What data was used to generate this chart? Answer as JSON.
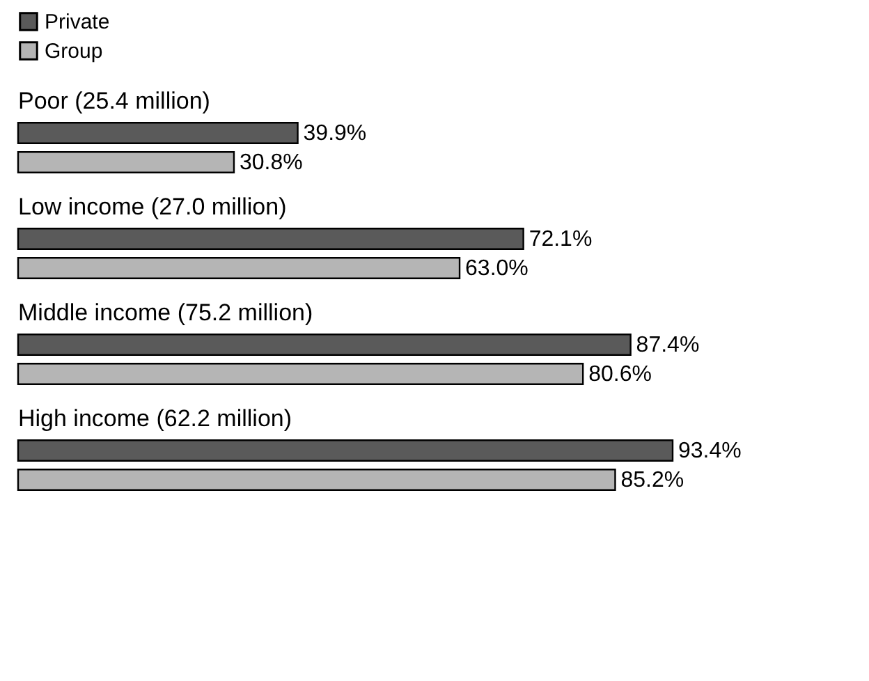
{
  "chart_data": {
    "type": "bar",
    "orientation": "horizontal",
    "categories": [
      "Poor (25.4 million)",
      "Low income (27.0 million)",
      "Middle income (75.2 million)",
      "High income (62.2 million)"
    ],
    "series": [
      {
        "name": "Private",
        "color": "#5a5a5a",
        "values": [
          39.9,
          72.1,
          87.4,
          93.4
        ],
        "value_labels": [
          "39.9%",
          "72.1%",
          "87.4%",
          "93.4%"
        ]
      },
      {
        "name": "Group",
        "color": "#b5b5b5",
        "values": [
          30.8,
          63.0,
          80.6,
          85.2
        ],
        "value_labels": [
          "30.8%",
          "63.0%",
          "80.6%",
          "85.2%"
        ]
      }
    ],
    "legend": "top left"
  }
}
